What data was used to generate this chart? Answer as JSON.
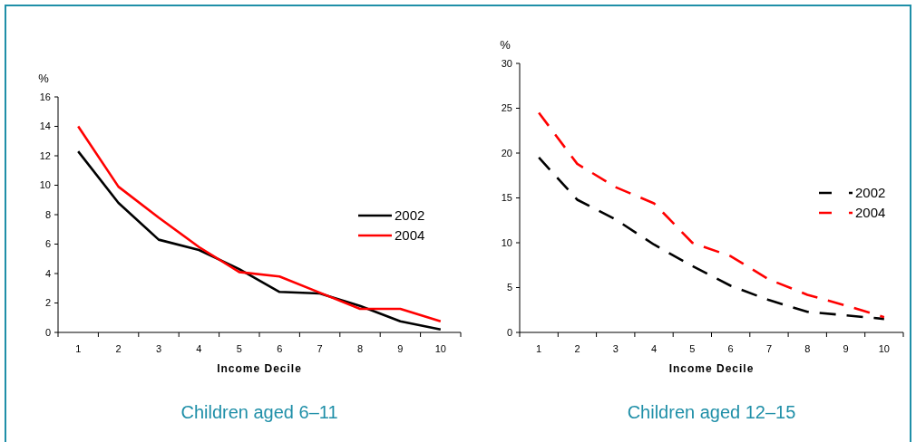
{
  "chart_data": [
    {
      "type": "line",
      "title": "Children aged 6–11",
      "xlabel": "Income Decile",
      "ylabel": "%",
      "categories": [
        "1",
        "2",
        "3",
        "4",
        "5",
        "6",
        "7",
        "8",
        "9",
        "10"
      ],
      "ylim": [
        0,
        16
      ],
      "yticks": [
        0,
        2,
        4,
        6,
        8,
        10,
        12,
        14,
        16
      ],
      "legend": "right",
      "line_style": "solid",
      "series": [
        {
          "name": "2002",
          "color": "#000000",
          "values": [
            12.3,
            8.8,
            6.3,
            5.6,
            4.3,
            2.75,
            2.65,
            1.8,
            0.75,
            0.2
          ]
        },
        {
          "name": "2004",
          "color": "#ff0000",
          "values": [
            14,
            9.9,
            7.8,
            5.8,
            4.1,
            3.8,
            2.7,
            1.6,
            1.6,
            0.75
          ]
        }
      ]
    },
    {
      "type": "line",
      "title": "Children aged 12–15",
      "xlabel": "Income Decile",
      "ylabel": "%",
      "categories": [
        "1",
        "2",
        "3",
        "4",
        "5",
        "6",
        "7",
        "8",
        "9",
        "10"
      ],
      "ylim": [
        0,
        30
      ],
      "yticks": [
        0,
        5,
        10,
        15,
        20,
        25,
        30
      ],
      "legend": "right",
      "line_style": "dashed",
      "series": [
        {
          "name": "2002",
          "color": "#000000",
          "values": [
            19.5,
            14.8,
            12.6,
            9.8,
            7.4,
            5.2,
            3.6,
            2.3,
            1.9,
            1.5
          ]
        },
        {
          "name": "2004",
          "color": "#ff0000",
          "values": [
            24.5,
            18.8,
            16.2,
            14.4,
            10,
            8.5,
            5.9,
            4.2,
            3,
            1.7
          ]
        }
      ]
    }
  ]
}
